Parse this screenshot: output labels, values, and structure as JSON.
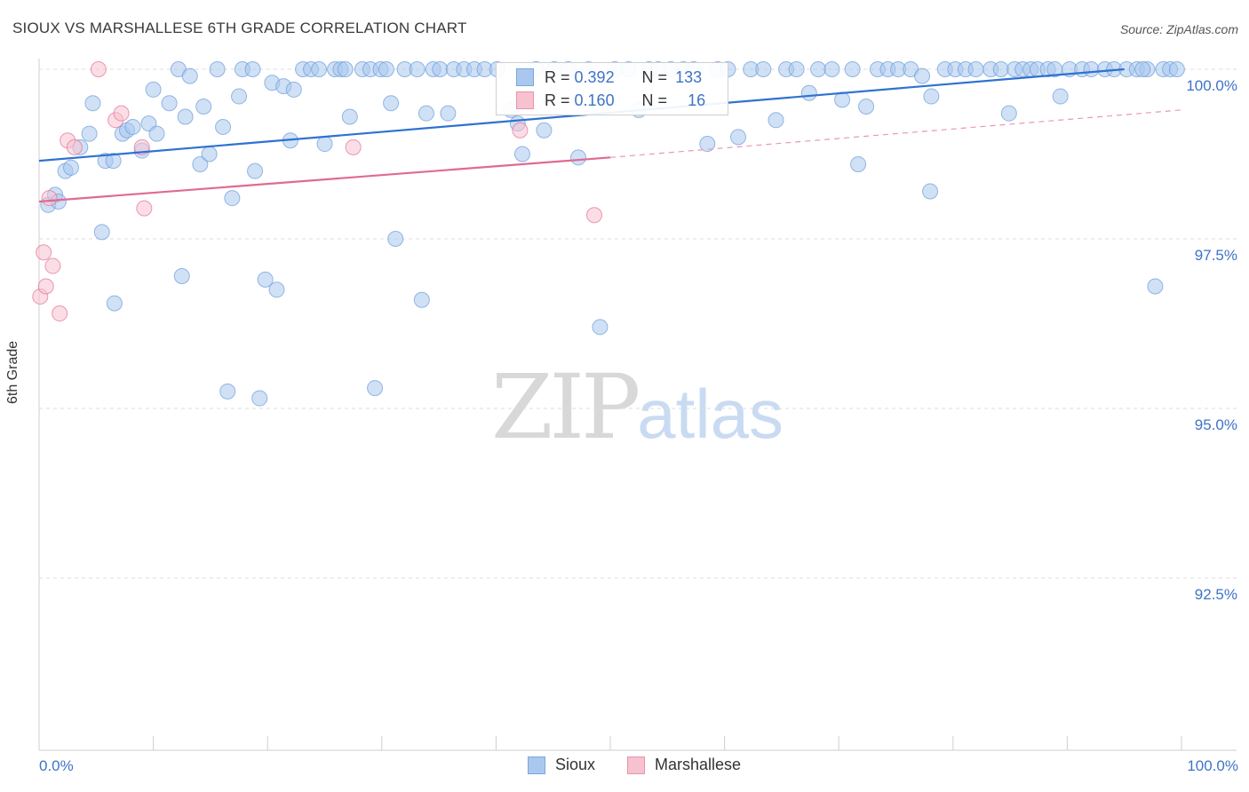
{
  "title": "SIOUX VS MARSHALLESE 6TH GRADE CORRELATION CHART",
  "source": "Source: ZipAtlas.com",
  "watermark": {
    "zip": "ZIP",
    "atlas": "atlas"
  },
  "legend": {
    "r_label": "R =",
    "n_label": "N =",
    "items": [
      {
        "name": "Sioux",
        "r": "0.392",
        "n": "133",
        "fill": "#aac8ee",
        "stroke": "#7aa7dd"
      },
      {
        "name": "Marshallese",
        "r": "0.160",
        "n": "16",
        "fill": "#f7c2d0",
        "stroke": "#e992ab"
      }
    ]
  },
  "chart_data": {
    "type": "scatter",
    "title": "SIOUX VS MARSHALLESE 6TH GRADE CORRELATION CHART",
    "xlabel": "",
    "ylabel": "6th Grade",
    "xlim": [
      0,
      100
    ],
    "ylim": [
      90.0,
      100.3
    ],
    "x_tick_labels": [
      "0.0%",
      "100.0%"
    ],
    "y_ticks": [
      {
        "value": 100.0,
        "label": "100.0%"
      },
      {
        "value": 97.5,
        "label": "97.5%"
      },
      {
        "value": 95.0,
        "label": "95.0%"
      },
      {
        "value": 92.5,
        "label": "92.5%"
      }
    ],
    "grid": true,
    "legend_position": "bottom-center",
    "series": [
      {
        "name": "Sioux",
        "color": "#6b9bd8",
        "fill": "#aac8ee",
        "trend": {
          "x0": 0,
          "y0": 98.65,
          "x1": 95,
          "y1": 100.0,
          "dashed_to": null
        },
        "points": [
          [
            0.8,
            98.0
          ],
          [
            1.4,
            98.15
          ],
          [
            1.7,
            98.05
          ],
          [
            2.3,
            98.5
          ],
          [
            2.8,
            98.55
          ],
          [
            3.6,
            98.85
          ],
          [
            4.4,
            99.05
          ],
          [
            4.7,
            99.5
          ],
          [
            5.5,
            97.6
          ],
          [
            5.8,
            98.65
          ],
          [
            6.5,
            98.65
          ],
          [
            6.6,
            96.55
          ],
          [
            7.3,
            99.05
          ],
          [
            7.7,
            99.1
          ],
          [
            8.2,
            99.15
          ],
          [
            9.0,
            98.8
          ],
          [
            9.6,
            99.2
          ],
          [
            10.0,
            99.7
          ],
          [
            10.3,
            99.05
          ],
          [
            11.4,
            99.5
          ],
          [
            12.2,
            100.0
          ],
          [
            12.5,
            96.95
          ],
          [
            12.8,
            99.3
          ],
          [
            13.2,
            99.9
          ],
          [
            14.1,
            98.6
          ],
          [
            14.4,
            99.45
          ],
          [
            14.9,
            98.75
          ],
          [
            15.6,
            100.0
          ],
          [
            16.1,
            99.15
          ],
          [
            16.5,
            95.25
          ],
          [
            16.9,
            98.1
          ],
          [
            17.5,
            99.6
          ],
          [
            17.8,
            100.0
          ],
          [
            18.7,
            100.0
          ],
          [
            18.9,
            98.5
          ],
          [
            19.3,
            95.15
          ],
          [
            19.8,
            96.9
          ],
          [
            20.4,
            99.8
          ],
          [
            20.8,
            96.75
          ],
          [
            21.4,
            99.75
          ],
          [
            22.0,
            98.95
          ],
          [
            22.3,
            99.7
          ],
          [
            23.1,
            100.0
          ],
          [
            23.8,
            100.0
          ],
          [
            24.5,
            100.0
          ],
          [
            25.0,
            98.9
          ],
          [
            25.9,
            100.0
          ],
          [
            26.4,
            100.0
          ],
          [
            26.8,
            100.0
          ],
          [
            27.2,
            99.3
          ],
          [
            28.3,
            100.0
          ],
          [
            29.0,
            100.0
          ],
          [
            29.4,
            95.3
          ],
          [
            29.9,
            100.0
          ],
          [
            30.4,
            100.0
          ],
          [
            30.8,
            99.5
          ],
          [
            31.2,
            97.5
          ],
          [
            32.0,
            100.0
          ],
          [
            33.1,
            100.0
          ],
          [
            33.5,
            96.6
          ],
          [
            33.9,
            99.35
          ],
          [
            34.5,
            100.0
          ],
          [
            35.1,
            100.0
          ],
          [
            35.8,
            99.35
          ],
          [
            36.3,
            100.0
          ],
          [
            37.2,
            100.0
          ],
          [
            38.1,
            100.0
          ],
          [
            39.0,
            100.0
          ],
          [
            40.1,
            100.0
          ],
          [
            41.3,
            99.4
          ],
          [
            41.9,
            99.2
          ],
          [
            42.3,
            98.75
          ],
          [
            43.5,
            100.0
          ],
          [
            44.2,
            99.1
          ],
          [
            45.1,
            100.0
          ],
          [
            46.3,
            100.0
          ],
          [
            47.2,
            98.7
          ],
          [
            48.1,
            100.0
          ],
          [
            49.1,
            96.2
          ],
          [
            50.4,
            100.0
          ],
          [
            51.6,
            100.0
          ],
          [
            52.5,
            99.4
          ],
          [
            53.4,
            100.0
          ],
          [
            54.2,
            100.0
          ],
          [
            55.3,
            100.0
          ],
          [
            56.4,
            100.0
          ],
          [
            57.3,
            100.0
          ],
          [
            58.5,
            98.9
          ],
          [
            59.4,
            100.0
          ],
          [
            60.3,
            100.0
          ],
          [
            61.2,
            99.0
          ],
          [
            62.3,
            100.0
          ],
          [
            63.4,
            100.0
          ],
          [
            64.5,
            99.25
          ],
          [
            65.4,
            100.0
          ],
          [
            66.3,
            100.0
          ],
          [
            67.4,
            99.65
          ],
          [
            68.2,
            100.0
          ],
          [
            69.4,
            100.0
          ],
          [
            70.3,
            99.55
          ],
          [
            71.2,
            100.0
          ],
          [
            71.7,
            98.6
          ],
          [
            72.4,
            99.45
          ],
          [
            73.4,
            100.0
          ],
          [
            74.3,
            100.0
          ],
          [
            75.2,
            100.0
          ],
          [
            76.3,
            100.0
          ],
          [
            77.3,
            99.9
          ],
          [
            78.1,
            99.6
          ],
          [
            79.3,
            100.0
          ],
          [
            80.2,
            100.0
          ],
          [
            81.1,
            100.0
          ],
          [
            78.0,
            98.2
          ],
          [
            82.0,
            100.0
          ],
          [
            83.3,
            100.0
          ],
          [
            84.2,
            100.0
          ],
          [
            84.9,
            99.35
          ],
          [
            85.4,
            100.0
          ],
          [
            86.1,
            100.0
          ],
          [
            86.8,
            100.0
          ],
          [
            87.4,
            100.0
          ],
          [
            88.3,
            100.0
          ],
          [
            88.9,
            100.0
          ],
          [
            89.4,
            99.6
          ],
          [
            90.2,
            100.0
          ],
          [
            91.3,
            100.0
          ],
          [
            92.1,
            100.0
          ],
          [
            93.3,
            100.0
          ],
          [
            94.1,
            100.0
          ],
          [
            95.2,
            100.0
          ],
          [
            96.1,
            100.0
          ],
          [
            97.0,
            100.0
          ],
          [
            97.7,
            96.8
          ],
          [
            98.4,
            100.0
          ],
          [
            99.0,
            100.0
          ],
          [
            99.6,
            100.0
          ],
          [
            96.6,
            100.0
          ]
        ]
      },
      {
        "name": "Marshallese",
        "color": "#e36f94",
        "fill": "#f7c2d0",
        "trend": {
          "x0": 0,
          "y0": 98.05,
          "x1": 50,
          "y1": 98.7,
          "dashed_to": {
            "x": 100,
            "y": 99.4
          }
        },
        "points": [
          [
            0.1,
            96.65
          ],
          [
            0.4,
            97.3
          ],
          [
            0.6,
            96.8
          ],
          [
            0.9,
            98.1
          ],
          [
            1.2,
            97.1
          ],
          [
            1.8,
            96.4
          ],
          [
            2.5,
            98.95
          ],
          [
            3.1,
            98.85
          ],
          [
            5.2,
            100.0
          ],
          [
            6.7,
            99.25
          ],
          [
            7.2,
            99.35
          ],
          [
            9.0,
            98.85
          ],
          [
            9.2,
            97.95
          ],
          [
            27.5,
            98.85
          ],
          [
            42.1,
            99.1
          ],
          [
            48.6,
            97.85
          ]
        ]
      }
    ]
  }
}
